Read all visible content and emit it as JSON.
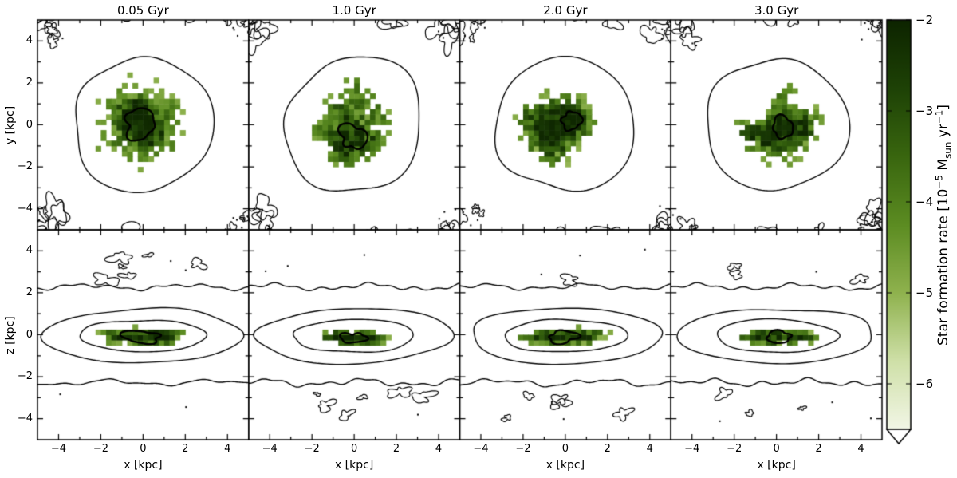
{
  "header": {
    "column_titles": [
      "0.05 Gyr",
      "1.0 Gyr",
      "2.0 Gyr",
      "3.0 Gyr"
    ]
  },
  "axes": {
    "xlabel": "x [kpc]",
    "row_ylabels": [
      "y [kpc]",
      "z [kpc]"
    ],
    "tick_values": [
      -4,
      -2,
      0,
      2,
      4
    ],
    "tick_labels": [
      "−4",
      "−2",
      "0",
      "2",
      "4"
    ]
  },
  "colorbar": {
    "ticks": [
      {
        "value": -2,
        "label": "−2"
      },
      {
        "value": -3,
        "label": "−3"
      },
      {
        "value": -4,
        "label": "−4"
      },
      {
        "value": -5,
        "label": "−5"
      },
      {
        "value": -6,
        "label": "−6"
      }
    ],
    "title_plain": "Star formation rate [10^-5 Msun yr^-1]",
    "title_segments": [
      {
        "text": "Star formation rate [10"
      },
      {
        "text": "−5",
        "style": "sup"
      },
      {
        "text": " M"
      },
      {
        "text": "sun",
        "style": "sub"
      },
      {
        "text": " yr"
      },
      {
        "text": "−1",
        "style": "sup"
      },
      {
        "text": "]"
      }
    ]
  },
  "chart_data": {
    "type": "heatmap",
    "title": "Star formation rate maps at four simulation times, face-on (x-y) and edge-on (x-z) views with density contours",
    "snapshots_gyr": [
      0.05,
      1.0,
      2.0,
      3.0
    ],
    "x_range": [
      -5,
      5
    ],
    "y_range": [
      -5,
      5
    ],
    "value_quantity": "Star formation rate",
    "value_units": "10^-5 Msun yr^-1 (log scale)",
    "value_range": [
      -6.5,
      -2
    ],
    "colormap_stops": [
      "#0d2400",
      "#1e4206",
      "#39660f",
      "#5c8c22",
      "#8fb24e",
      "#cfe0a8",
      "#f2f6e6"
    ],
    "rows": [
      {
        "view": "face-on",
        "vertical_axis": "y"
      },
      {
        "view": "edge-on",
        "vertical_axis": "z"
      }
    ],
    "contours": {
      "top_outer_radius_kpc": 3.25,
      "bottom_ellipses_kpc": [
        [
          2.9,
          0.78
        ],
        [
          4.6,
          1.32
        ]
      ],
      "bottom_outer_line_z_kpc": 2.28
    },
    "top_panels": [
      {
        "time": "0.05 Gyr",
        "clumps": [
          [
            -0.15,
            0.05,
            1.15,
            1.15,
            1.0
          ],
          [
            0.3,
            -0.3,
            0.5,
            0.5,
            0.3
          ],
          [
            -0.6,
            0.6,
            0.5,
            0.5,
            0.25
          ]
        ],
        "core": [
          -0.15,
          0.05,
          0.72
        ]
      },
      {
        "time": "1.0 Gyr",
        "clumps": [
          [
            -0.05,
            -0.55,
            0.75,
            0.75,
            1.0
          ],
          [
            -0.7,
            0.9,
            0.5,
            0.5,
            0.5
          ],
          [
            0.5,
            1.3,
            0.45,
            0.45,
            0.45
          ],
          [
            1.1,
            0.4,
            0.45,
            0.45,
            0.4
          ],
          [
            -1.4,
            -0.3,
            0.5,
            0.5,
            0.45
          ],
          [
            -0.6,
            -1.5,
            0.45,
            0.45,
            0.4
          ],
          [
            0.9,
            -1.0,
            0.4,
            0.4,
            0.35
          ],
          [
            0.1,
            1.95,
            0.35,
            0.35,
            0.3
          ]
        ],
        "core": [
          -0.05,
          -0.55,
          0.6
        ]
      },
      {
        "time": "2.0 Gyr",
        "clumps": [
          [
            -0.3,
            0.2,
            0.85,
            0.85,
            1.0
          ],
          [
            0.55,
            0.25,
            0.5,
            0.5,
            0.7
          ],
          [
            -1.2,
            -0.5,
            0.55,
            0.55,
            0.6
          ],
          [
            -0.5,
            -1.3,
            0.5,
            0.5,
            0.5
          ],
          [
            -1.8,
            0.3,
            0.4,
            0.4,
            0.4
          ]
        ],
        "core": [
          0.3,
          0.2,
          0.45
        ]
      },
      {
        "time": "3.0 Gyr",
        "clumps": [
          [
            0.4,
            -0.25,
            0.8,
            0.8,
            1.0
          ],
          [
            -0.7,
            -0.6,
            0.6,
            0.6,
            0.6
          ],
          [
            1.4,
            0.1,
            0.5,
            0.5,
            0.5
          ],
          [
            0.1,
            1.5,
            0.4,
            0.4,
            0.35
          ],
          [
            -1.5,
            -0.2,
            0.4,
            0.4,
            0.35
          ],
          [
            0.8,
            1.9,
            0.35,
            0.35,
            0.3
          ]
        ],
        "core": [
          0.3,
          -0.1,
          0.5
        ]
      }
    ],
    "bottom_panels": [
      {
        "time": "0.05 Gyr",
        "clumps": [
          [
            0,
            -0.1,
            1.0,
            0.26,
            1.0
          ],
          [
            -1.3,
            -0.1,
            0.5,
            0.2,
            0.6
          ],
          [
            1.2,
            -0.05,
            0.5,
            0.2,
            0.6
          ]
        ],
        "core": [
          -0.1,
          -0.1,
          0.85,
          0.3
        ]
      },
      {
        "time": "1.0 Gyr",
        "clumps": [
          [
            0,
            -0.15,
            0.8,
            0.24,
            1.0
          ],
          [
            -1.0,
            -0.1,
            0.45,
            0.2,
            0.55
          ],
          [
            0.9,
            -0.1,
            0.45,
            0.2,
            0.55
          ]
        ],
        "core": [
          -0.05,
          -0.15,
          0.55,
          0.26
        ]
      },
      {
        "time": "2.0 Gyr",
        "clumps": [
          [
            0,
            -0.1,
            1.05,
            0.25,
            1.0
          ],
          [
            -1.4,
            -0.1,
            0.5,
            0.2,
            0.6
          ],
          [
            1.3,
            0.0,
            0.5,
            0.2,
            0.55
          ]
        ],
        "core": [
          -0.1,
          -0.1,
          0.7,
          0.28
        ]
      },
      {
        "time": "3.0 Gyr",
        "clumps": [
          [
            0.1,
            -0.1,
            0.95,
            0.24,
            1.0
          ],
          [
            -1.1,
            -0.1,
            0.45,
            0.2,
            0.55
          ],
          [
            1.2,
            -0.05,
            0.45,
            0.2,
            0.55
          ]
        ],
        "core": [
          0.1,
          -0.1,
          0.6,
          0.27
        ]
      }
    ]
  }
}
